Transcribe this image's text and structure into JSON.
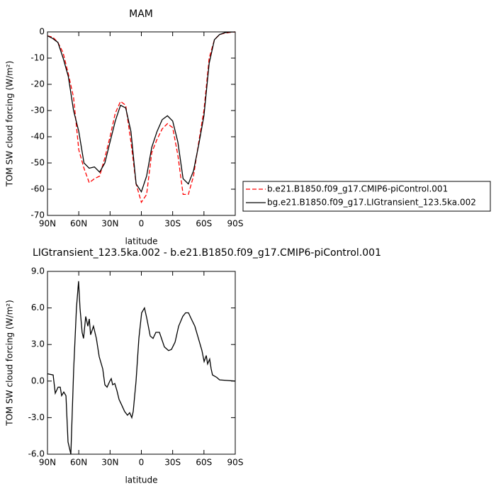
{
  "chart_data": [
    {
      "type": "line",
      "title": "MAM",
      "x_label": "latitude",
      "y_label": "TOM SW cloud forcing (W/m²)",
      "x": [
        90,
        85,
        80,
        75,
        70,
        65,
        60,
        55,
        50,
        45,
        40,
        35,
        30,
        25,
        20,
        15,
        10,
        5,
        0,
        -5,
        -10,
        -15,
        -20,
        -25,
        -30,
        -35,
        -40,
        -45,
        -50,
        -55,
        -60,
        -65,
        -70,
        -75,
        -80,
        -85,
        -90
      ],
      "series": [
        {
          "name": "b.e21.B1850.f09_g17.CMIP6-piControl.001",
          "color": "#ff0000",
          "style": "dashed",
          "values": [
            -1.5,
            -2,
            -4,
            -8,
            -16,
            -25,
            -45,
            -52,
            -57.5,
            -56,
            -55,
            -48,
            -40,
            -31,
            -26.5,
            -28,
            -42,
            -58,
            -65,
            -62,
            -46,
            -41,
            -37,
            -35,
            -36.5,
            -47,
            -62,
            -62,
            -55,
            -42,
            -30,
            -10,
            -3,
            -1,
            -0.5,
            -0.2,
            0
          ]
        },
        {
          "name": "bg.e21.B1850.f09_g17.LIGtransient_123.5ka.002",
          "color": "#000000",
          "style": "solid",
          "values": [
            -1.5,
            -2.5,
            -4,
            -10,
            -17,
            -30,
            -38,
            -50,
            -52,
            -51.5,
            -53.5,
            -50,
            -42,
            -34,
            -28,
            -29,
            -38,
            -58,
            -61,
            -55,
            -44,
            -38,
            -33.5,
            -32,
            -34,
            -42,
            -56,
            -58,
            -53,
            -43,
            -32,
            -12,
            -3,
            -1,
            -0.3,
            -0.1,
            0
          ]
        }
      ],
      "xlim": [
        90,
        -90
      ],
      "ylim": [
        -70,
        0
      ],
      "xticks": [
        {
          "value": 90,
          "label": "90N"
        },
        {
          "value": 60,
          "label": "60N"
        },
        {
          "value": 30,
          "label": "30N"
        },
        0,
        {
          "value": -30,
          "label": "30S"
        },
        {
          "value": -60,
          "label": "60S"
        },
        {
          "value": -90,
          "label": "90S"
        }
      ],
      "yticks": [
        0,
        -10,
        -20,
        -30,
        -40,
        -50,
        -60,
        -70
      ],
      "legend": "right"
    },
    {
      "type": "line",
      "title": "LIGtransient_123.5ka.002 - b.e21.B1850.f09_g17.CMIP6-piControl.001",
      "x_label": "latitude",
      "y_label": "TOM SW cloud forcing (W/m²)",
      "x": [
        90,
        84.6,
        82.5,
        79.8,
        77.8,
        76.4,
        74.4,
        72.3,
        70.3,
        67.6,
        64.9,
        62.2,
        60.2,
        58.8,
        56.8,
        55.4,
        53.3,
        51.3,
        49.9,
        48.6,
        45.9,
        43.1,
        40.4,
        37,
        35,
        32.9,
        30.2,
        28.9,
        27.5,
        25.5,
        23.4,
        21.4,
        18.7,
        16,
        13.3,
        11.2,
        9.2,
        7.8,
        5.1,
        2.4,
        -0.3,
        -3,
        -5.1,
        -8.5,
        -11.2,
        -13.9,
        -17.3,
        -22.1,
        -26.1,
        -28.9,
        -32.3,
        -35.7,
        -39.7,
        -42.4,
        -45.2,
        -47.9,
        -51.3,
        -54.7,
        -58.1,
        -60.2,
        -62.2,
        -63.5,
        -65.5,
        -66.9,
        -68.2,
        -70.3,
        -72.3,
        -75,
        -81.8,
        -90
      ],
      "series": [
        {
          "color": "#000000",
          "style": "solid",
          "values": [
            0.6,
            0.5,
            -1,
            -0.5,
            -0.5,
            -1.2,
            -0.9,
            -1.2,
            -5,
            -6,
            1,
            6,
            8.2,
            6,
            4,
            3.5,
            5.3,
            4.5,
            5.1,
            3.8,
            4.5,
            3.5,
            2,
            1,
            -0.3,
            -0.5,
            0,
            0.2,
            -0.3,
            -0.2,
            -0.8,
            -1.5,
            -2,
            -2.5,
            -2.8,
            -2.6,
            -3,
            -2.5,
            0,
            3.5,
            5.6,
            6,
            5.2,
            3.7,
            3.5,
            4,
            4,
            2.8,
            2.5,
            2.6,
            3.2,
            4.5,
            5.3,
            5.6,
            5.6,
            5.1,
            4.5,
            3.5,
            2.5,
            1.6,
            2.1,
            1.4,
            1.8,
            1,
            0.5,
            0.4,
            0.3,
            0.1,
            0.05,
            0
          ]
        }
      ],
      "xlim": [
        90,
        -90
      ],
      "ylim": [
        -6,
        9
      ],
      "xticks": [
        {
          "value": 90,
          "label": "90N"
        },
        {
          "value": 60,
          "label": "60N"
        },
        {
          "value": 30,
          "label": "30N"
        },
        0,
        {
          "value": -30,
          "label": "30S"
        },
        {
          "value": -60,
          "label": "60S"
        },
        {
          "value": -90,
          "label": "90S"
        }
      ],
      "yticks": [
        {
          "value": 9,
          "label": "9.0"
        },
        {
          "value": 6,
          "label": "6.0"
        },
        {
          "value": 3,
          "label": "3.0"
        },
        {
          "value": 0,
          "label": "0.0"
        },
        {
          "value": -3,
          "label": "-3.0"
        },
        {
          "value": -6,
          "label": "-6.0"
        }
      ]
    }
  ]
}
